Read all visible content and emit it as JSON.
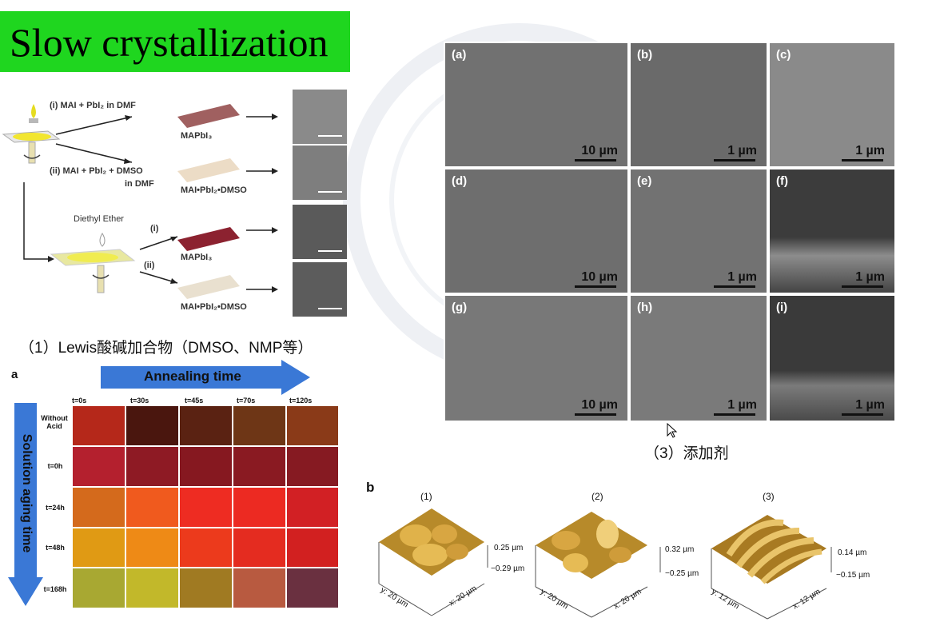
{
  "title": "Slow crystallization",
  "scheme": {
    "route_i": "(i) MAI + PbI₂ in DMF",
    "route_ii": "(ii) MAI + PbI₂ + DMSO",
    "route_ii_line2": "in DMF",
    "product_1": "MAPbI₃",
    "product_2": "MAI•PbI₂•DMSO",
    "ether": "Diethyl Ether",
    "mark_i": "(i)",
    "mark_ii": "(ii)",
    "product_3": "MAPbI₃",
    "product_4": "MAI•PbI₂•DMSO"
  },
  "caption_1": "（1）Lewis酸碱加合物（DMSO、NMP等）",
  "caption_3": "（3）添加剂",
  "sem_panels": [
    {
      "label": "(a)",
      "scale": "10 µm"
    },
    {
      "label": "(b)",
      "scale": "1 µm"
    },
    {
      "label": "(c)",
      "scale": "1 µm"
    },
    {
      "label": "(d)",
      "scale": "10 µm"
    },
    {
      "label": "(e)",
      "scale": "1 µm"
    },
    {
      "label": "(f)",
      "scale": "1 µm"
    },
    {
      "label": "(g)",
      "scale": "10 µm"
    },
    {
      "label": "(h)",
      "scale": "1 µm"
    },
    {
      "label": "(i)",
      "scale": "1 µm"
    }
  ],
  "panel_a": {
    "letter": "a",
    "annealing": "Annealing time",
    "aging": "Solution aging time",
    "columns": [
      "t=0s",
      "t=30s",
      "t=45s",
      "t=70s",
      "t=120s"
    ],
    "rows": [
      "Without Acid",
      "t=0h",
      "t=24h",
      "t=48h",
      "t=168h"
    ]
  },
  "panel_b": {
    "letter": "b",
    "items": [
      {
        "num": "(1)",
        "zmax": "0.25 µm",
        "zmin": "−0.29 µm",
        "x": "x: 20 µm",
        "y": "y: 20 µm"
      },
      {
        "num": "(2)",
        "zmax": "0.32 µm",
        "zmin": "−0.25 µm",
        "x": "x: 20 µm",
        "y": "y: 20 µm"
      },
      {
        "num": "(3)",
        "zmax": "0.14 µm",
        "zmin": "−0.15 µm",
        "x": "x: 12 µm",
        "y": "y: 12 µm"
      }
    ]
  },
  "colors": {
    "title_bg": "#1fd61f",
    "arrow_blue": "#3a78d6"
  }
}
